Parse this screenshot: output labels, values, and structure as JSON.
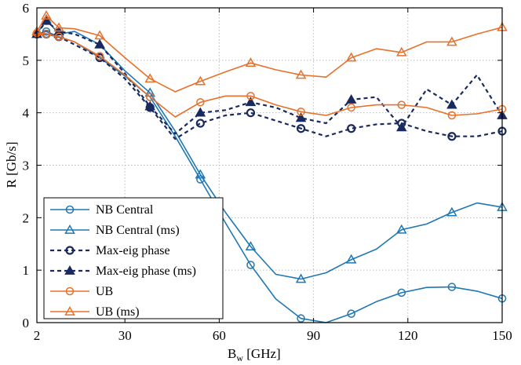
{
  "chart_data": {
    "type": "line",
    "xlabel": "B",
    "xlabel_sub": "w",
    "xlabel_unit": "[GHz]",
    "ylabel": "R [Gb/s]",
    "xlim": [
      2,
      150
    ],
    "ylim": [
      0,
      6
    ],
    "xticks": [
      2,
      30,
      60,
      90,
      120,
      150
    ],
    "yticks": [
      0,
      1,
      2,
      3,
      4,
      5,
      6
    ],
    "grid": true,
    "legend_position": "bottom-left",
    "series": [
      {
        "name": "NB Central",
        "color": "#1f77b4",
        "dash": "solid",
        "marker": "circle",
        "x": [
          2,
          5,
          9,
          14,
          22,
          30,
          38,
          46,
          54,
          62,
          70,
          78,
          86,
          94,
          102,
          110,
          118,
          126,
          134,
          142,
          150
        ],
        "y": [
          5.5,
          5.55,
          5.45,
          5.35,
          5.05,
          4.7,
          4.3,
          3.55,
          2.73,
          1.9,
          1.1,
          0.45,
          0.08,
          0.0,
          0.17,
          0.4,
          0.57,
          0.67,
          0.68,
          0.6,
          0.46
        ],
        "marker_x": [
          2,
          5,
          9,
          22,
          38,
          54,
          70,
          86,
          102,
          118,
          134,
          150
        ]
      },
      {
        "name": "NB Central (ms)",
        "color": "#1f77b4",
        "dash": "solid",
        "marker": "triangle",
        "x": [
          2,
          5,
          9,
          14,
          22,
          30,
          38,
          46,
          54,
          62,
          70,
          78,
          86,
          94,
          102,
          110,
          118,
          126,
          134,
          142,
          150
        ],
        "y": [
          5.5,
          5.78,
          5.5,
          5.55,
          5.3,
          4.8,
          4.38,
          3.65,
          2.82,
          2.1,
          1.45,
          0.92,
          0.83,
          0.95,
          1.2,
          1.4,
          1.77,
          1.88,
          2.1,
          2.28,
          2.2
        ],
        "marker_x": [
          2,
          5,
          9,
          22,
          38,
          54,
          70,
          86,
          102,
          118,
          134,
          150
        ]
      },
      {
        "name": "Max-eig phase",
        "color": "#1a2a5e",
        "dash": "dashed",
        "marker": "circle",
        "x": [
          2,
          5,
          9,
          14,
          22,
          30,
          38,
          46,
          54,
          62,
          70,
          78,
          86,
          94,
          102,
          110,
          118,
          126,
          134,
          142,
          150
        ],
        "y": [
          5.5,
          5.5,
          5.45,
          5.3,
          5.05,
          4.65,
          4.1,
          3.5,
          3.8,
          3.95,
          4.0,
          3.85,
          3.7,
          3.55,
          3.7,
          3.78,
          3.8,
          3.65,
          3.55,
          3.55,
          3.65
        ],
        "marker_x": [
          2,
          5,
          9,
          22,
          38,
          54,
          70,
          86,
          102,
          118,
          134,
          150
        ]
      },
      {
        "name": "Max-eig phase (ms)",
        "color": "#1a2a5e",
        "dash": "dashed",
        "marker": "triangle",
        "x": [
          2,
          5,
          9,
          14,
          22,
          30,
          38,
          46,
          54,
          62,
          70,
          78,
          86,
          94,
          102,
          110,
          118,
          126,
          134,
          142,
          150
        ],
        "y": [
          5.5,
          5.75,
          5.55,
          5.5,
          5.3,
          4.75,
          4.12,
          3.6,
          4.0,
          4.05,
          4.2,
          4.1,
          3.9,
          3.8,
          4.25,
          4.3,
          3.72,
          4.45,
          4.15,
          4.72,
          3.95
        ],
        "marker_x": [
          2,
          5,
          9,
          22,
          38,
          54,
          70,
          86,
          102,
          118,
          134,
          150
        ]
      },
      {
        "name": "UB",
        "color": "#e8702a",
        "dash": "solid",
        "marker": "circle",
        "x": [
          2,
          5,
          9,
          14,
          22,
          30,
          38,
          46,
          54,
          62,
          70,
          78,
          86,
          94,
          102,
          110,
          118,
          126,
          134,
          142,
          150
        ],
        "y": [
          5.52,
          5.5,
          5.45,
          5.35,
          5.08,
          4.72,
          4.3,
          3.92,
          4.2,
          4.32,
          4.32,
          4.15,
          4.02,
          3.95,
          4.1,
          4.15,
          4.15,
          4.1,
          3.95,
          3.98,
          4.07
        ],
        "marker_x": [
          2,
          5,
          9,
          22,
          38,
          54,
          70,
          86,
          102,
          118,
          134,
          150
        ]
      },
      {
        "name": "UB (ms)",
        "color": "#e8702a",
        "dash": "solid",
        "marker": "triangle",
        "x": [
          2,
          5,
          9,
          14,
          22,
          30,
          38,
          46,
          54,
          62,
          70,
          78,
          86,
          94,
          102,
          110,
          118,
          126,
          134,
          142,
          150
        ],
        "y": [
          5.55,
          5.85,
          5.62,
          5.6,
          5.47,
          5.05,
          4.65,
          4.4,
          4.6,
          4.78,
          4.95,
          4.82,
          4.72,
          4.68,
          5.05,
          5.22,
          5.15,
          5.35,
          5.35,
          5.5,
          5.63
        ],
        "marker_x": [
          2,
          5,
          9,
          22,
          38,
          54,
          70,
          86,
          102,
          118,
          134,
          150
        ]
      }
    ]
  }
}
